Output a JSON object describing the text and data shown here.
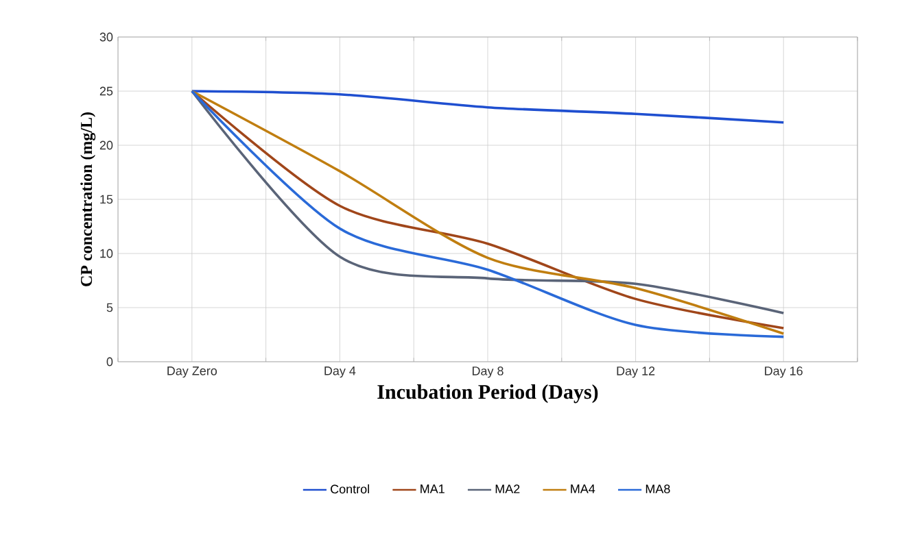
{
  "chart_data": {
    "type": "line",
    "xlabel": "Incubation Period (Days)",
    "ylabel": "CP concentration (mg/L)",
    "categories": [
      "Day Zero",
      "Day 4",
      "Day 8",
      "Day 12",
      "Day 16"
    ],
    "series": [
      {
        "name": "Control",
        "color": "#1f4fd0",
        "values": [
          25,
          24.7,
          23.5,
          22.9,
          22.1
        ]
      },
      {
        "name": "MA1",
        "color": "#a0461a",
        "values": [
          25,
          14.4,
          10.9,
          5.8,
          3.1
        ]
      },
      {
        "name": "MA2",
        "color": "#5a6478",
        "values": [
          25,
          9.7,
          7.7,
          7.2,
          4.5
        ]
      },
      {
        "name": "MA4",
        "color": "#c07e10",
        "values": [
          25,
          17.6,
          9.6,
          6.8,
          2.6
        ]
      },
      {
        "name": "MA8",
        "color": "#2a6ad8",
        "values": [
          25,
          12.3,
          8.5,
          3.4,
          2.3
        ]
      }
    ],
    "ylim": [
      0,
      30
    ],
    "yticks": [
      0,
      5,
      10,
      15,
      20,
      25,
      30
    ],
    "grid": true,
    "legend": "bottom",
    "marker": "none",
    "line_style": "solid"
  }
}
